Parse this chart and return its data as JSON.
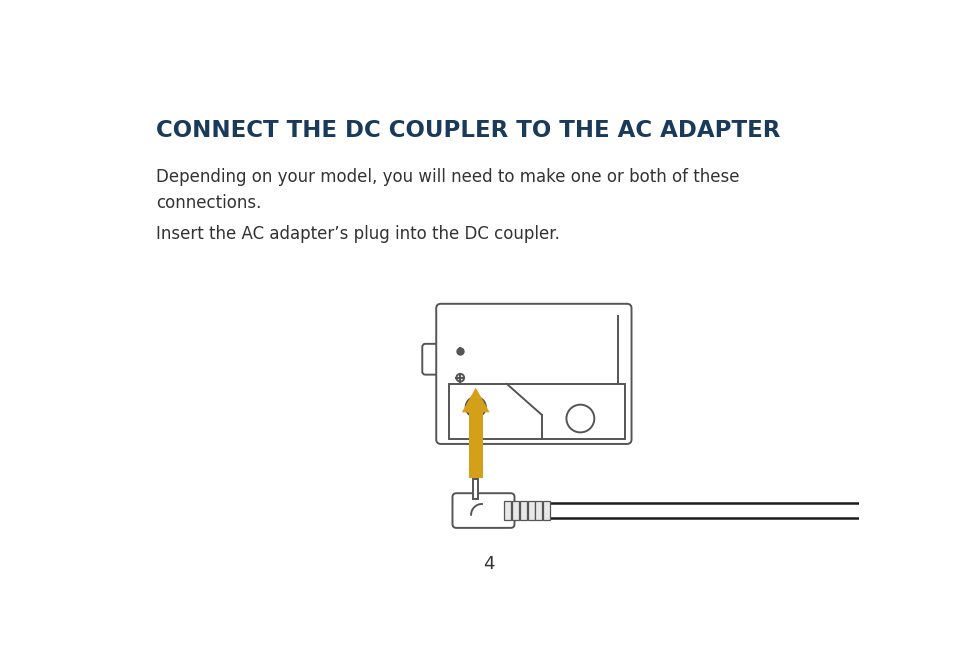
{
  "title": "CONNECT THE DC COUPLER TO THE AC ADAPTER",
  "title_color": "#1a3a5c",
  "body_text_1": "Depending on your model, you will need to make one or both of these\nconnections.",
  "body_text_2": "Insert the AC adapter’s plug into the DC coupler.",
  "page_number": "4",
  "background_color": "#ffffff",
  "text_color": "#333333",
  "line_color": "#555555",
  "arrow_color": "#d4a017",
  "fig_width": 9.54,
  "fig_height": 6.58,
  "dpi": 100
}
